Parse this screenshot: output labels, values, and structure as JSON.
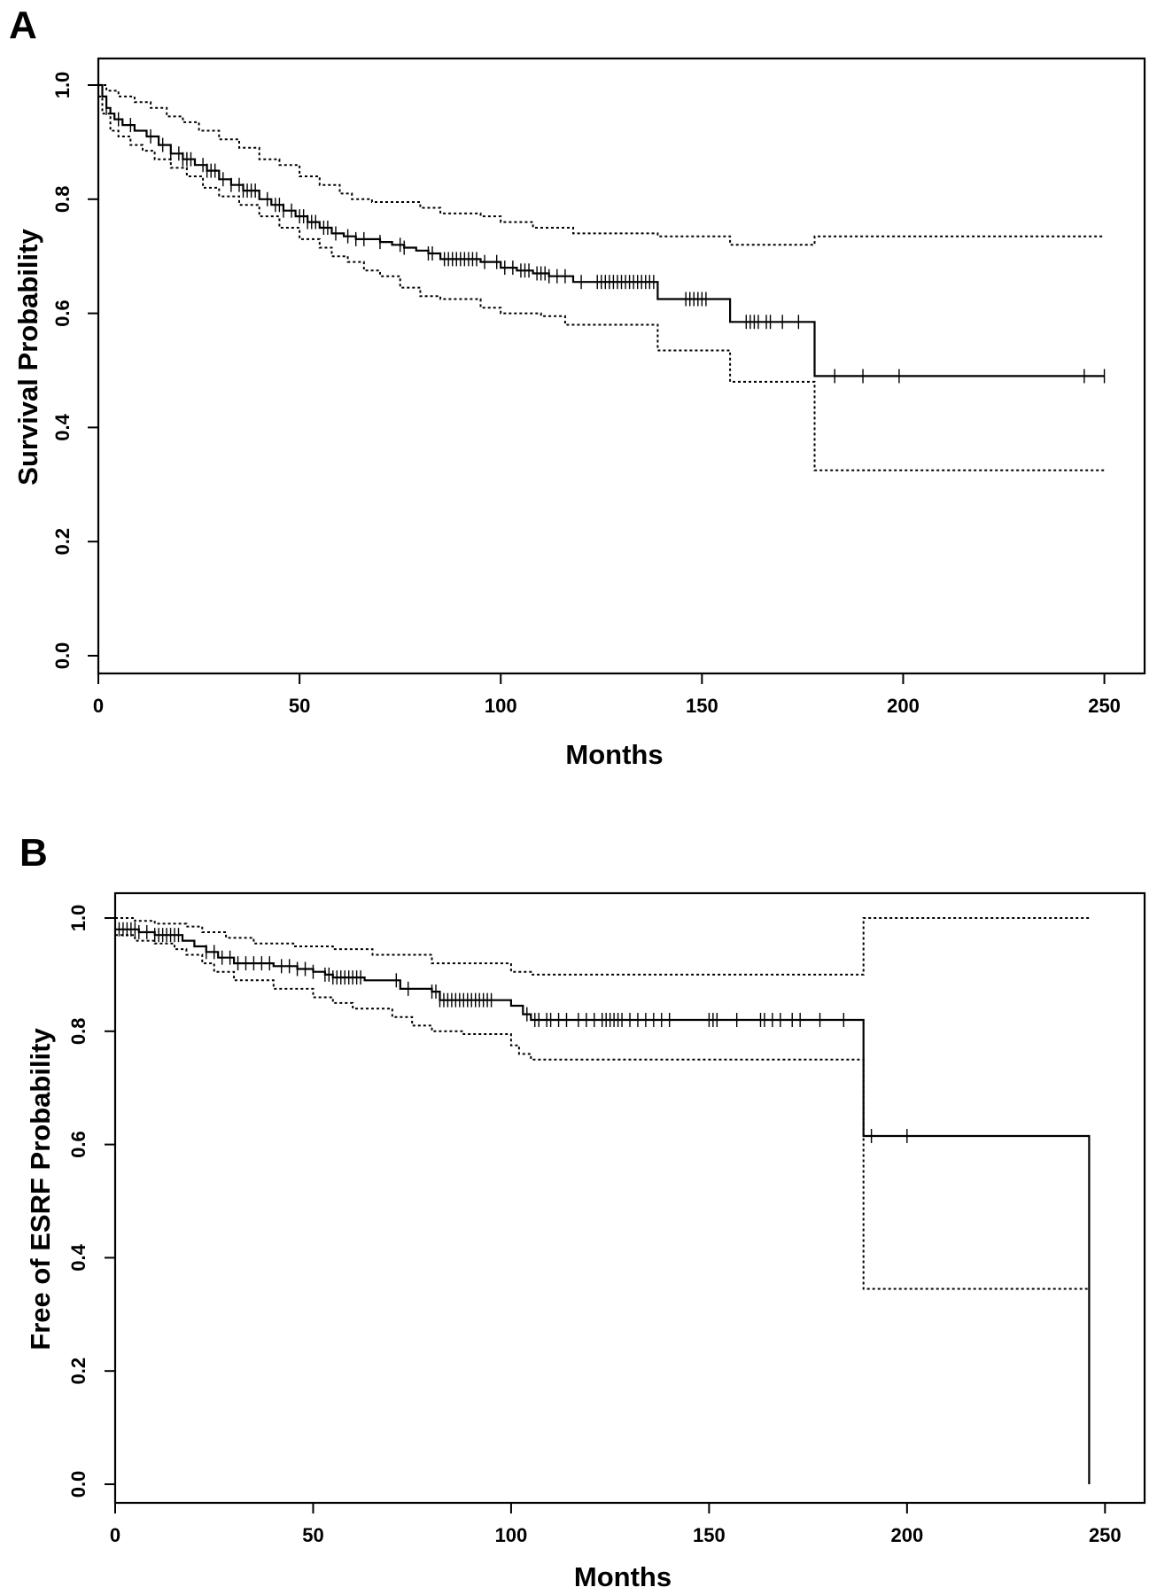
{
  "chart_data": [
    {
      "panel_letter": "A",
      "type": "line",
      "xlabel": "Months",
      "ylabel": "Survival Probability",
      "xlim": [
        0,
        260
      ],
      "ylim": [
        0.0,
        1.0
      ],
      "xticks": [
        0,
        50,
        100,
        150,
        200,
        250
      ],
      "yticks": [
        0.0,
        0.2,
        0.4,
        0.6,
        0.8,
        1.0
      ],
      "xtick_labels": [
        "0",
        "50",
        "100",
        "150",
        "200",
        "250"
      ],
      "ytick_labels": [
        "0.0",
        "0.2",
        "0.4",
        "0.6",
        "0.8",
        "1.0"
      ],
      "grid": false,
      "series": [
        {
          "style": "solid",
          "x": [
            0,
            1,
            2,
            3,
            4,
            6,
            9,
            12,
            15,
            18,
            21,
            24,
            27,
            30,
            33,
            36,
            40,
            43,
            46,
            49,
            52,
            55,
            58,
            61,
            64,
            67,
            70,
            73,
            76,
            79,
            82,
            85,
            95,
            100,
            104,
            108,
            112,
            118,
            139,
            157,
            178,
            250
          ],
          "y": [
            1.0,
            0.98,
            0.96,
            0.95,
            0.94,
            0.93,
            0.92,
            0.91,
            0.895,
            0.88,
            0.87,
            0.86,
            0.85,
            0.835,
            0.825,
            0.815,
            0.8,
            0.79,
            0.78,
            0.77,
            0.76,
            0.75,
            0.74,
            0.735,
            0.73,
            0.73,
            0.725,
            0.72,
            0.715,
            0.71,
            0.705,
            0.695,
            0.69,
            0.68,
            0.675,
            0.67,
            0.665,
            0.655,
            0.625,
            0.585,
            0.49,
            0.49
          ]
        },
        {
          "style": "dotted",
          "x": [
            0,
            2,
            5,
            9,
            13,
            17,
            21,
            25,
            30,
            35,
            40,
            45,
            50,
            55,
            60,
            63,
            68,
            75,
            80,
            85,
            95,
            100,
            108,
            118,
            139,
            157,
            178,
            250
          ],
          "y": [
            1.0,
            0.99,
            0.98,
            0.97,
            0.96,
            0.945,
            0.935,
            0.92,
            0.905,
            0.89,
            0.87,
            0.86,
            0.84,
            0.825,
            0.81,
            0.8,
            0.795,
            0.795,
            0.785,
            0.775,
            0.77,
            0.76,
            0.75,
            0.74,
            0.735,
            0.72,
            0.735,
            0.735
          ]
        },
        {
          "style": "dotted",
          "x": [
            0,
            1,
            3,
            5,
            8,
            11,
            14,
            18,
            22,
            26,
            30,
            35,
            40,
            45,
            50,
            55,
            58,
            62,
            66,
            70,
            75,
            80,
            85,
            95,
            100,
            110,
            116,
            139,
            157,
            178,
            250
          ],
          "y": [
            0.98,
            0.95,
            0.92,
            0.91,
            0.895,
            0.885,
            0.87,
            0.855,
            0.84,
            0.82,
            0.805,
            0.79,
            0.77,
            0.75,
            0.73,
            0.715,
            0.7,
            0.69,
            0.675,
            0.665,
            0.645,
            0.63,
            0.625,
            0.61,
            0.6,
            0.595,
            0.58,
            0.535,
            0.48,
            0.325,
            0.325
          ]
        }
      ],
      "censor_x": [
        2,
        5,
        8,
        13,
        16,
        18,
        20,
        21,
        22,
        23,
        26,
        27,
        28,
        29,
        31,
        33,
        35,
        36,
        37,
        38,
        39,
        42,
        44,
        45,
        46,
        48,
        50,
        51,
        52,
        53,
        54,
        56,
        57,
        59,
        62,
        64,
        66,
        70,
        75,
        76,
        82,
        83,
        86,
        87,
        88,
        89,
        90,
        91,
        92,
        93,
        94,
        96,
        99,
        101,
        103,
        105,
        106,
        107,
        109,
        110,
        111,
        112,
        114,
        116,
        120,
        124,
        125,
        126,
        127,
        128,
        129,
        130,
        131,
        132,
        133,
        134,
        135,
        136,
        137,
        138,
        146,
        147,
        148,
        149,
        150,
        151,
        161,
        162,
        163,
        164,
        166,
        167,
        170,
        174,
        183,
        190,
        199,
        245,
        250
      ]
    },
    {
      "panel_letter": "B",
      "type": "line",
      "xlabel": "Months",
      "ylabel": "Free of ESRF Probability",
      "xlim": [
        0,
        260
      ],
      "ylim": [
        0.0,
        1.0
      ],
      "xticks": [
        0,
        50,
        100,
        150,
        200,
        250
      ],
      "yticks": [
        0.0,
        0.2,
        0.4,
        0.6,
        0.8,
        1.0
      ],
      "xtick_labels": [
        "0",
        "50",
        "100",
        "150",
        "200",
        "250"
      ],
      "ytick_labels": [
        "0.0",
        "0.2",
        "0.4",
        "0.6",
        "0.8",
        "1.0"
      ],
      "grid": false,
      "series": [
        {
          "style": "solid",
          "x": [
            0,
            6,
            10,
            17,
            20,
            23,
            26,
            30,
            40,
            46,
            50,
            53,
            55,
            63,
            72,
            80,
            82,
            100,
            103,
            105,
            189,
            246
          ],
          "y": [
            0.98,
            0.975,
            0.97,
            0.96,
            0.95,
            0.94,
            0.93,
            0.92,
            0.915,
            0.91,
            0.905,
            0.9,
            0.895,
            0.89,
            0.875,
            0.87,
            0.855,
            0.845,
            0.83,
            0.82,
            0.615,
            0.0
          ]
        },
        {
          "style": "dotted",
          "x": [
            0,
            5,
            10,
            18,
            22,
            28,
            35,
            45,
            55,
            65,
            80,
            100,
            105,
            189,
            246
          ],
          "y": [
            1.0,
            0.995,
            0.99,
            0.985,
            0.975,
            0.965,
            0.955,
            0.95,
            0.945,
            0.935,
            0.92,
            0.905,
            0.9,
            1.0,
            1.0
          ]
        },
        {
          "style": "dotted",
          "x": [
            0,
            5,
            10,
            15,
            18,
            22,
            25,
            30,
            40,
            50,
            55,
            60,
            70,
            75,
            80,
            88,
            100,
            102,
            105,
            189,
            246
          ],
          "y": [
            0.97,
            0.96,
            0.955,
            0.945,
            0.935,
            0.92,
            0.905,
            0.89,
            0.875,
            0.86,
            0.85,
            0.84,
            0.825,
            0.81,
            0.8,
            0.795,
            0.775,
            0.76,
            0.75,
            0.345,
            0.345
          ]
        }
      ],
      "censor_x": [
        1,
        2,
        3,
        4,
        5,
        6,
        8,
        10,
        11,
        12,
        13,
        14,
        15,
        16,
        23,
        25,
        27,
        29,
        31,
        33,
        35,
        37,
        39,
        42,
        44,
        46,
        48,
        50,
        53,
        54,
        55,
        56,
        57,
        58,
        59,
        60,
        61,
        62,
        71,
        74,
        80,
        81,
        82,
        83,
        84,
        85,
        86,
        87,
        88,
        89,
        90,
        91,
        92,
        93,
        94,
        95,
        104,
        106,
        107,
        109,
        110,
        112,
        114,
        117,
        119,
        121,
        123,
        124,
        125,
        126,
        127,
        128,
        130,
        132,
        134,
        136,
        138,
        140,
        150,
        151,
        152,
        157,
        163,
        164,
        166,
        168,
        171,
        173,
        178,
        184,
        191,
        200
      ]
    }
  ]
}
